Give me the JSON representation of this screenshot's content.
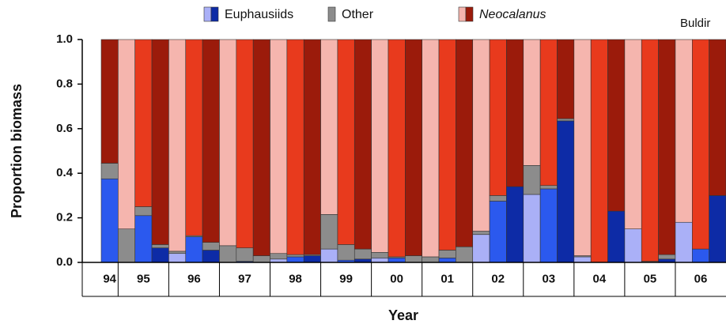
{
  "chart_data": {
    "type": "stacked_bar",
    "annotation": "Buldir",
    "y_label": "Proportion biomass",
    "x_label": "Year",
    "categories": [
      "94",
      null,
      "95",
      null,
      null,
      "96",
      null,
      null,
      "97",
      null,
      null,
      "98",
      null,
      null,
      "99",
      null,
      null,
      "00",
      null,
      null,
      "01",
      null,
      null,
      "02",
      null,
      null,
      "03",
      null,
      null,
      "04",
      null,
      null,
      "05",
      null,
      null,
      "06",
      null
    ],
    "ylim": [
      0,
      1.0
    ],
    "yticks": [
      {
        "value": 0,
        "label": "0.0"
      },
      0.2,
      0.4,
      0.6,
      0.8,
      {
        "value": 1,
        "label": "1.0"
      }
    ],
    "series": [
      {
        "name": "Euphausiids",
        "legend_colors": [
          "#aab0f7",
          "#0d2ba6"
        ],
        "colors": [
          "#2b59ee",
          "#aab0f7",
          "#2b59ee",
          "#0d2ba6",
          "#aab0f7",
          "#2b59ee",
          "#0d2ba6",
          "#aab0f7",
          "#2b59ee",
          "#0d2ba6",
          "#aab0f7",
          "#2b59ee",
          "#0d2ba6",
          "#aab0f7",
          "#2b59ee",
          "#0d2ba6",
          "#aab0f7",
          "#2b59ee",
          "#0d2ba6",
          "#aab0f7",
          "#2b59ee",
          "#0d2ba6",
          "#aab0f7",
          "#2b59ee",
          "#0d2ba6",
          "#aab0f7",
          "#2b59ee",
          "#0d2ba6",
          "#aab0f7",
          "#2b59ee",
          "#0d2ba6",
          "#aab0f7",
          "#2b59ee",
          "#0d2ba6",
          "#aab0f7",
          "#2b59ee",
          "#0d2ba6"
        ],
        "values": [
          0.375,
          0.0,
          0.21,
          0.065,
          0.04,
          0.115,
          0.055,
          0.0,
          0.005,
          0.0,
          0.015,
          0.025,
          0.03,
          0.06,
          0.01,
          0.015,
          0.02,
          0.02,
          0.0,
          0.0,
          0.02,
          0.0,
          0.125,
          0.275,
          0.34,
          0.305,
          0.33,
          0.635,
          0.025,
          0.0,
          0.23,
          0.15,
          0.0,
          0.015,
          0.18,
          0.06,
          0.3
        ]
      },
      {
        "name": "Other",
        "legend_colors": [
          "#8c8c8c"
        ],
        "color": "#8c8c8c",
        "values": [
          0.07,
          0.15,
          0.04,
          0.015,
          0.01,
          0.005,
          0.035,
          0.075,
          0.06,
          0.03,
          0.025,
          0.01,
          0.005,
          0.155,
          0.07,
          0.045,
          0.025,
          0.005,
          0.03,
          0.025,
          0.035,
          0.07,
          0.015,
          0.025,
          0.0,
          0.13,
          0.015,
          0.01,
          0.005,
          0.0,
          0.0,
          0.0,
          0.005,
          0.02,
          0.0,
          0.0,
          0.0
        ]
      },
      {
        "name": "Neocalanus",
        "legend_colors": [
          "#f5b5ae",
          "#9b1b0b"
        ],
        "colors": [
          "#9b1b0b",
          "#f5b5ae",
          "#e83a1d",
          "#9b1b0b",
          "#f5b5ae",
          "#e83a1d",
          "#9b1b0b",
          "#f5b5ae",
          "#e83a1d",
          "#9b1b0b",
          "#f5b5ae",
          "#e83a1d",
          "#9b1b0b",
          "#f5b5ae",
          "#e83a1d",
          "#9b1b0b",
          "#f5b5ae",
          "#e83a1d",
          "#9b1b0b",
          "#f5b5ae",
          "#e83a1d",
          "#9b1b0b",
          "#f5b5ae",
          "#e83a1d",
          "#9b1b0b",
          "#f5b5ae",
          "#e83a1d",
          "#9b1b0b",
          "#f5b5ae",
          "#e83a1d",
          "#9b1b0b",
          "#f5b5ae",
          "#e83a1d",
          "#9b1b0b",
          "#f5b5ae",
          "#e83a1d",
          "#9b1b0b"
        ],
        "values": [
          0.555,
          0.85,
          0.75,
          0.92,
          0.95,
          0.88,
          0.91,
          0.925,
          0.935,
          0.97,
          0.96,
          0.965,
          0.965,
          0.785,
          0.92,
          0.94,
          0.955,
          0.975,
          0.97,
          0.975,
          0.945,
          0.93,
          0.86,
          0.7,
          0.66,
          0.565,
          0.655,
          0.355,
          0.97,
          1.0,
          0.77,
          0.85,
          0.995,
          0.965,
          0.82,
          0.94,
          0.7
        ]
      }
    ]
  }
}
